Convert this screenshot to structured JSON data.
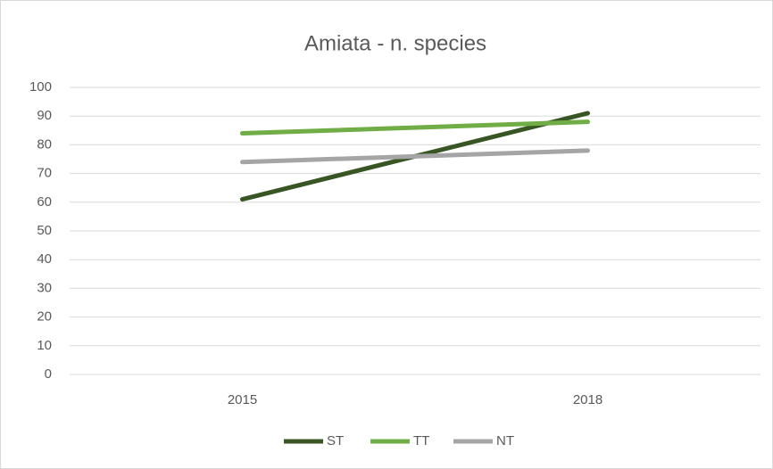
{
  "chart_data": {
    "type": "line",
    "title": "Amiata - n. species",
    "categories": [
      "2015",
      "2018"
    ],
    "series": [
      {
        "name": "ST",
        "color": "#375623",
        "values": [
          61,
          91
        ]
      },
      {
        "name": "TT",
        "color": "#70ad47",
        "values": [
          84,
          88
        ]
      },
      {
        "name": "NT",
        "color": "#a5a5a5",
        "values": [
          74,
          78
        ]
      }
    ],
    "ylim": [
      0,
      100
    ],
    "yticks": [
      0,
      10,
      20,
      30,
      40,
      50,
      60,
      70,
      80,
      90,
      100
    ],
    "grid": true,
    "legend": "bottom"
  }
}
